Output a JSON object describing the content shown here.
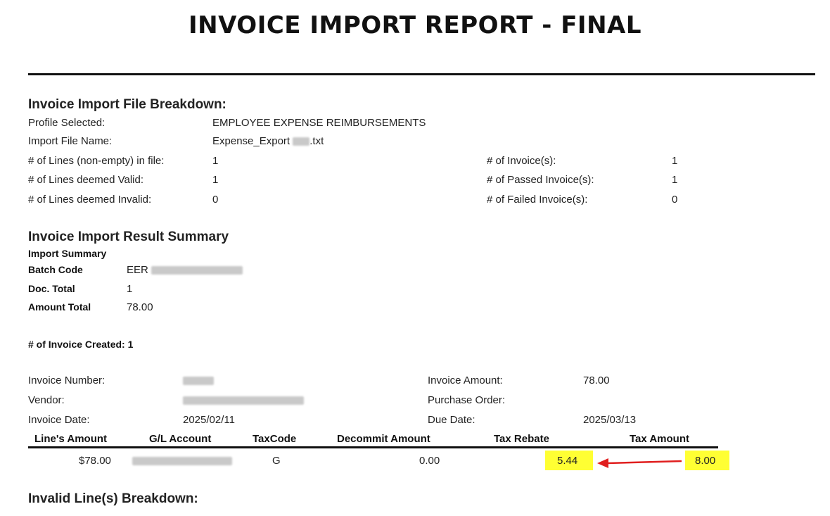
{
  "title": "INVOICE IMPORT REPORT - FINAL",
  "breakdown": {
    "heading": "Invoice Import File Breakdown:",
    "profile_label": "Profile Selected:",
    "profile_value": "EMPLOYEE EXPENSE REIMBURSEMENTS",
    "file_label": "Import File Name:",
    "file_prefix": "Expense_Export",
    "file_suffix": ".txt",
    "lines_label": "# of Lines (non-empty) in file:",
    "lines_value": "1",
    "valid_label": "# of Lines deemed Valid:",
    "valid_value": "1",
    "invalid_label": "# of Lines deemed Invalid:",
    "invalid_value": "0",
    "invoices_label": "# of Invoice(s):",
    "invoices_value": "1",
    "passed_label": "# of Passed Invoice(s):",
    "passed_value": "1",
    "failed_label": "# of Failed Invoice(s):",
    "failed_value": "0"
  },
  "summary": {
    "heading": "Invoice Import Result Summary",
    "subheading": "Import Summary",
    "batch_label": "Batch Code",
    "batch_prefix": "EER",
    "doc_label": "Doc. Total",
    "doc_value": "1",
    "amount_label": "Amount Total",
    "amount_value": "78.00",
    "created_label": "# of Invoice Created: 1"
  },
  "invoice": {
    "number_label": "Invoice Number:",
    "vendor_label": "Vendor:",
    "date_label": "Invoice Date:",
    "date_value": "2025/02/11",
    "amount_label": "Invoice Amount:",
    "amount_value": "78.00",
    "po_label": "Purchase Order:",
    "due_label": "Due Date:",
    "due_value": "2025/03/13"
  },
  "line_table": {
    "headers": [
      "Line's Amount",
      "G/L Account",
      "TaxCode",
      "Decommit Amount",
      "Tax Rebate",
      "Tax Amount"
    ],
    "row": {
      "line_amount": "$78.00",
      "tax_code": "G",
      "decommit": "0.00",
      "tax_rebate": "5.44",
      "tax_amount": "8.00"
    }
  },
  "invalid_heading": "Invalid Line(s) Breakdown:",
  "colors": {
    "highlight": "#ffff33",
    "arrow": "#e01e1e",
    "rule": "#111111"
  }
}
